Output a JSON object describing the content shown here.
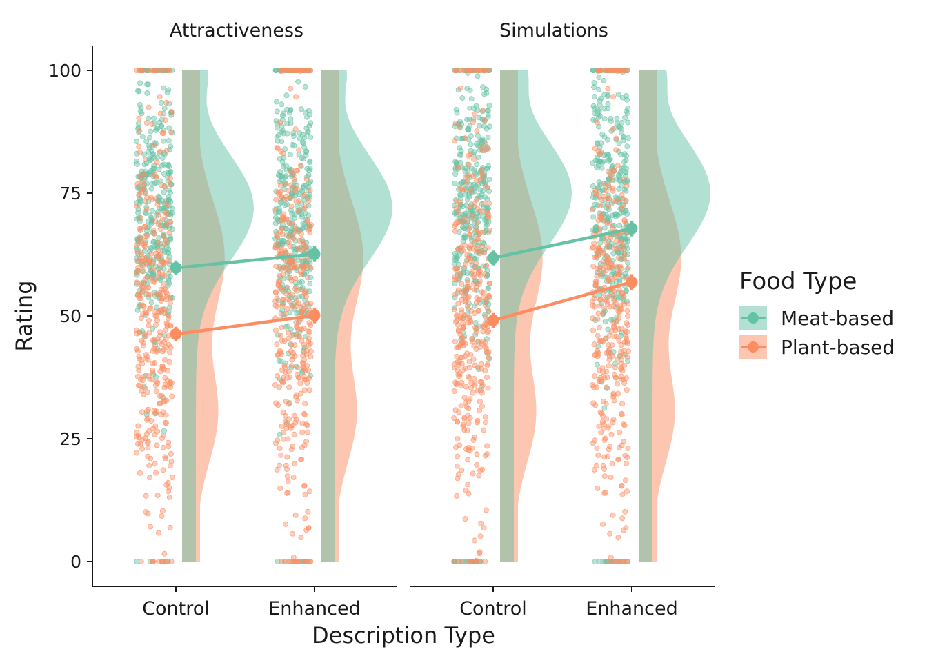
{
  "chart_data": {
    "type": "raincloud",
    "x_title": "Description Type",
    "y_title": "Rating",
    "ylim": [
      0,
      100
    ],
    "y_ticks": [
      0,
      25,
      50,
      75,
      100
    ],
    "categories": [
      "Control",
      "Enhanced"
    ],
    "legend": {
      "title": "Food Type",
      "placement": "right",
      "items": [
        {
          "label": "Meat-based",
          "color": "#66c2a5"
        },
        {
          "label": "Plant-based",
          "color": "#fc8d62"
        }
      ]
    },
    "panels": [
      {
        "title": "Attractiveness",
        "series": [
          {
            "name": "Meat-based",
            "means": [
              59.8,
              62.6
            ],
            "ci": [
              1.5,
              1.6
            ],
            "density_peak": 72
          },
          {
            "name": "Plant-based",
            "means": [
              46.3,
              50.1
            ],
            "ci": [
              1.5,
              1.6
            ],
            "density_peak": 62
          }
        ]
      },
      {
        "title": "Simulations",
        "series": [
          {
            "name": "Meat-based",
            "means": [
              61.8,
              67.8
            ],
            "ci": [
              1.5,
              1.6
            ],
            "density_peak": 75
          },
          {
            "name": "Plant-based",
            "means": [
              49.1,
              56.9
            ],
            "ci": [
              1.5,
              1.6
            ],
            "density_peak": 62
          }
        ]
      }
    ]
  }
}
